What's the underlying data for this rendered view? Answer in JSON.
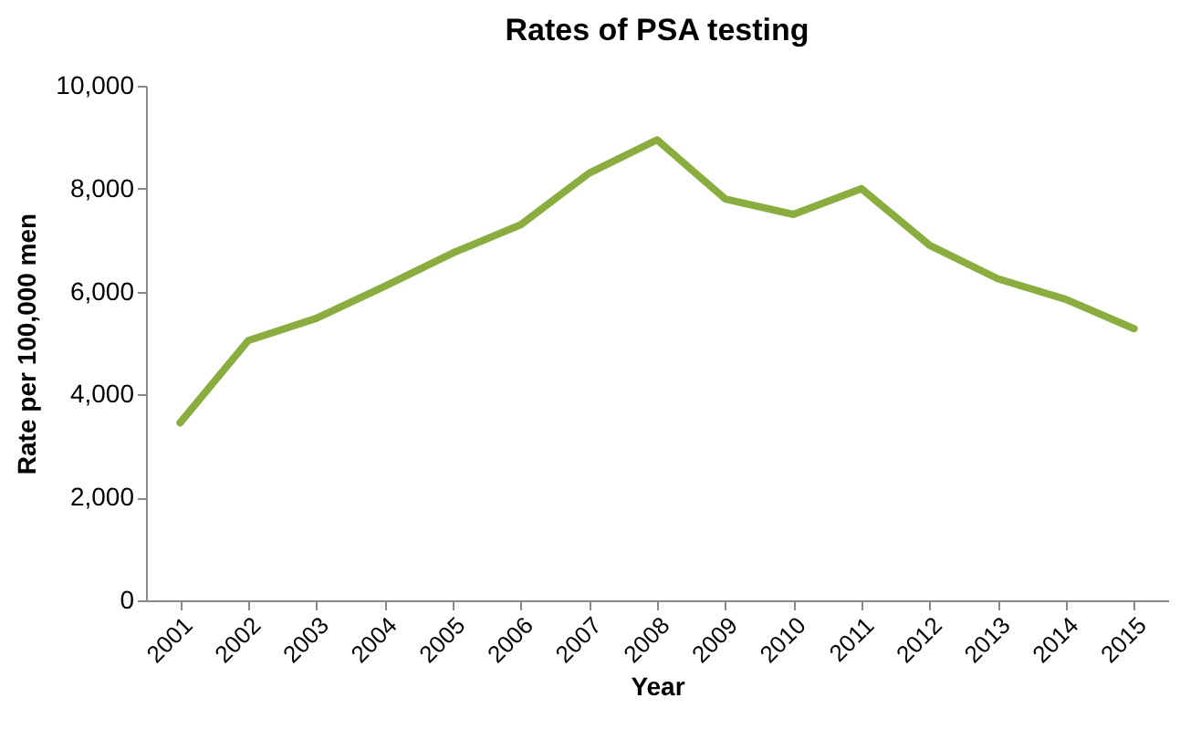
{
  "chart_data": {
    "type": "line",
    "title": "Rates of PSA testing",
    "xlabel": "Year",
    "ylabel": "Rate per 100,000 men",
    "categories": [
      "2001",
      "2002",
      "2003",
      "2004",
      "2005",
      "2006",
      "2007",
      "2008",
      "2009",
      "2010",
      "2011",
      "2012",
      "2013",
      "2014",
      "2015"
    ],
    "series": [
      {
        "color": "#8aad3f",
        "values": [
          3450,
          5050,
          5480,
          6100,
          6750,
          7300,
          8300,
          8950,
          7800,
          7500,
          8000,
          6900,
          6250,
          5850,
          5280
        ]
      }
    ],
    "ylim": [
      0,
      10000
    ],
    "yticks": [
      {
        "value": 0,
        "label": "0"
      },
      {
        "value": 2000,
        "label": "2,000"
      },
      {
        "value": 4000,
        "label": "4,000"
      },
      {
        "value": 6000,
        "label": "6,000"
      },
      {
        "value": 8000,
        "label": "8,000"
      },
      {
        "value": 10000,
        "label": "10,000"
      }
    ],
    "grid": false,
    "legend": false,
    "marker": "none",
    "line_style": "solid"
  }
}
